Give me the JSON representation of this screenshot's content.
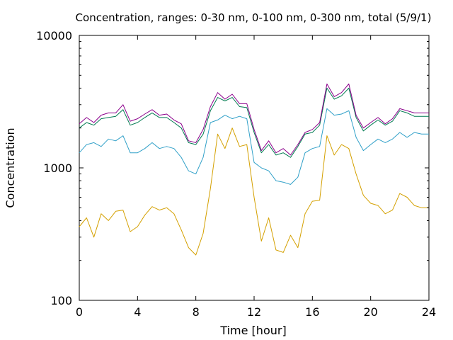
{
  "chart_data": {
    "type": "line",
    "title": "Concentration, ranges: 0-30 nm, 0-100 nm, 0-300 nm, total (5/9/1)",
    "xlabel": "Time [hour]",
    "ylabel": "Concentration",
    "xlim": [
      0,
      24
    ],
    "ylim": [
      100,
      10000
    ],
    "yscale": "log",
    "grid": false,
    "legend": "none",
    "x_ticks": [
      0,
      4,
      8,
      12,
      16,
      20,
      24
    ],
    "x_tick_labels": [
      "0",
      "4",
      "8",
      "12",
      "16",
      "20",
      "24"
    ],
    "y_ticks": [
      100,
      1000,
      10000
    ],
    "y_tick_labels": [
      "100",
      "1000",
      "10000"
    ],
    "x": [
      0,
      0.5,
      1,
      1.5,
      2,
      2.5,
      3,
      3.5,
      4,
      4.5,
      5,
      5.5,
      6,
      6.5,
      7,
      7.5,
      8,
      8.5,
      9,
      9.5,
      10,
      10.5,
      11,
      11.5,
      12,
      12.5,
      13,
      13.5,
      14,
      14.5,
      15,
      15.5,
      16,
      16.5,
      17,
      17.5,
      18,
      18.5,
      19,
      19.5,
      20,
      20.5,
      21,
      21.5,
      22,
      22.5,
      23,
      23.5,
      24
    ],
    "series": [
      {
        "color": "#d4a000",
        "values": [
          360,
          420,
          300,
          450,
          400,
          470,
          480,
          330,
          360,
          440,
          510,
          480,
          500,
          450,
          340,
          250,
          220,
          320,
          700,
          1800,
          1400,
          2000,
          1450,
          1500,
          600,
          280,
          420,
          240,
          230,
          310,
          250,
          450,
          560,
          570,
          1750,
          1250,
          1500,
          1400,
          900,
          620,
          540,
          520,
          450,
          480,
          640,
          600,
          520,
          500,
          500
        ]
      },
      {
        "color": "#30a0c8",
        "values": [
          1300,
          1500,
          1550,
          1450,
          1650,
          1600,
          1750,
          1300,
          1300,
          1400,
          1550,
          1400,
          1450,
          1400,
          1200,
          950,
          900,
          1200,
          2200,
          2300,
          2500,
          2350,
          2450,
          2350,
          1100,
          1000,
          950,
          800,
          780,
          750,
          850,
          1300,
          1400,
          1450,
          2800,
          2500,
          2550,
          2700,
          1700,
          1350,
          1500,
          1650,
          1550,
          1650,
          1850,
          1700,
          1850,
          1800,
          1800
        ]
      },
      {
        "color": "#007a50",
        "values": [
          2000,
          2200,
          2100,
          2350,
          2400,
          2450,
          2750,
          2100,
          2200,
          2400,
          2600,
          2400,
          2400,
          2200,
          2000,
          1550,
          1500,
          1800,
          2700,
          3400,
          3200,
          3400,
          2900,
          2850,
          1850,
          1300,
          1500,
          1250,
          1300,
          1200,
          1450,
          1800,
          1850,
          2100,
          4000,
          3300,
          3500,
          4000,
          2400,
          1900,
          2100,
          2300,
          2100,
          2250,
          2700,
          2600,
          2450,
          2450,
          2450
        ]
      },
      {
        "color": "#8c008c",
        "values": [
          2150,
          2400,
          2200,
          2500,
          2600,
          2600,
          3000,
          2250,
          2350,
          2550,
          2750,
          2500,
          2550,
          2300,
          2150,
          1600,
          1550,
          1950,
          2900,
          3700,
          3300,
          3600,
          3050,
          3050,
          1950,
          1350,
          1600,
          1300,
          1400,
          1250,
          1500,
          1850,
          1950,
          2200,
          4300,
          3450,
          3700,
          4300,
          2500,
          2000,
          2200,
          2400,
          2150,
          2350,
          2800,
          2700,
          2600,
          2600,
          2600
        ]
      }
    ]
  }
}
